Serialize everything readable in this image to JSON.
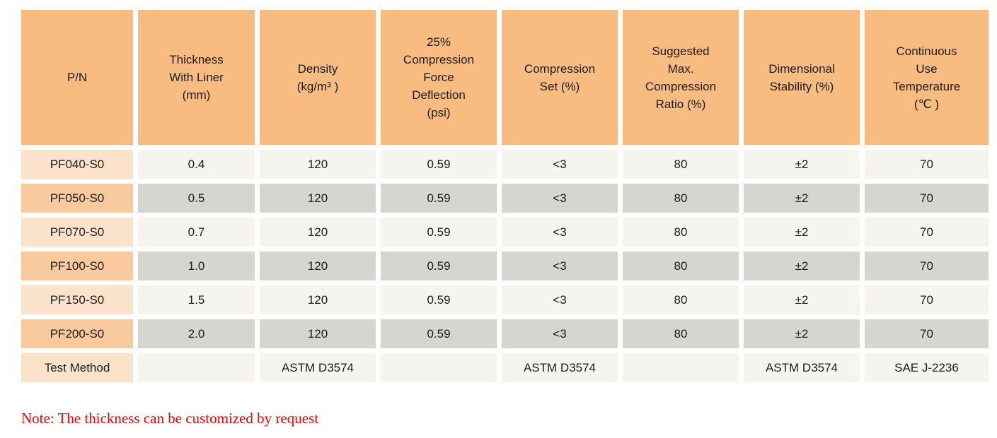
{
  "table": {
    "headers": [
      "P/N",
      "Thickness\nWith Liner\n(mm)",
      "Density\n(kg/m³ )",
      "25%\nCompression\nForce\nDeflection\n(psi)",
      "Compression\nSet (%)",
      "Suggested\nMax.\nCompression\nRatio (%)",
      "Dimensional\nStability (%)",
      "Continuous\nUse\nTemperature\n(℃ )"
    ],
    "rows": [
      {
        "pn": "PF040-S0",
        "values": [
          "0.4",
          "120",
          "0.59",
          "<3",
          "80",
          "±2",
          "70"
        ]
      },
      {
        "pn": "PF050-S0",
        "values": [
          "0.5",
          "120",
          "0.59",
          "<3",
          "80",
          "±2",
          "70"
        ]
      },
      {
        "pn": "PF070-S0",
        "values": [
          "0.7",
          "120",
          "0.59",
          "<3",
          "80",
          "±2",
          "70"
        ]
      },
      {
        "pn": "PF100-S0",
        "values": [
          "1.0",
          "120",
          "0.59",
          "<3",
          "80",
          "±2",
          "70"
        ]
      },
      {
        "pn": "PF150-S0",
        "values": [
          "1.5",
          "120",
          "0.59",
          "<3",
          "80",
          "±2",
          "70"
        ]
      },
      {
        "pn": "PF200-S0",
        "values": [
          "2.0",
          "120",
          "0.59",
          "<3",
          "80",
          "±2",
          "70"
        ]
      }
    ],
    "test_method": {
      "label": "Test Method",
      "values": [
        "",
        "ASTM D3574",
        "",
        "ASTM D3574",
        "",
        "ASTM D3574",
        "SAE J-2236"
      ]
    }
  },
  "note": "Note: The thickness can be customized by request",
  "colors": {
    "header_bg": "#f8bb80",
    "pn_light_bg": "#fbe3cb",
    "pn_dark_bg": "#f8ca9d",
    "cell_light_bg": "#f5f4ee",
    "cell_dark_bg": "#d6d6d0",
    "text_color": "#1c1c1c",
    "note_color": "#f40000",
    "page_bg": "#ffffff"
  }
}
